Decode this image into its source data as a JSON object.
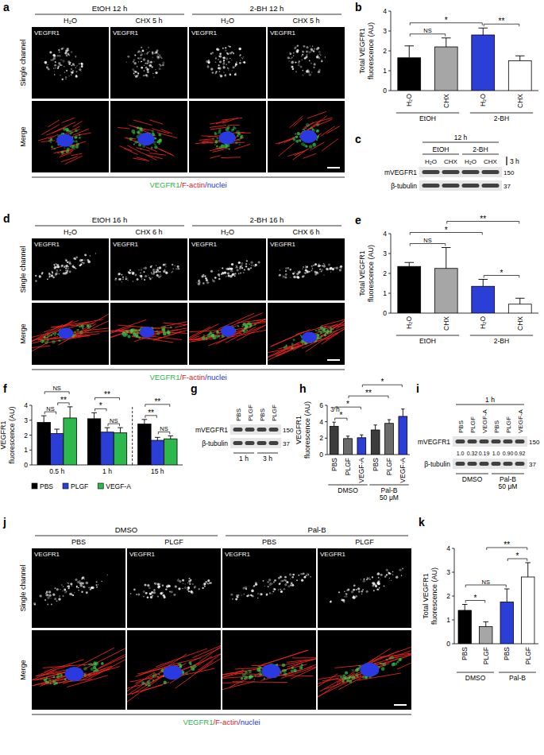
{
  "chart_data": [
    {
      "panel": "b",
      "type": "bar",
      "y_label": [
        "Total VEGFR1",
        "fluorescence (AU)"
      ],
      "categories": [
        "H₂O",
        "CHX",
        "H₂O",
        "CHX"
      ],
      "groups": [
        {
          "label": "EtOH",
          "categories": [
            0,
            1
          ]
        },
        {
          "label": "2-BH",
          "categories": [
            2,
            3
          ]
        }
      ],
      "values": [
        1.65,
        2.2,
        2.8,
        1.5
      ],
      "errors": [
        0.6,
        0.45,
        0.35,
        0.25
      ],
      "colors": [
        "#000000",
        "#a6a6a6",
        "#2b3fd6",
        "#ffffff"
      ],
      "ylim": [
        0,
        4
      ],
      "yticks": [
        0,
        1,
        2,
        3,
        4
      ],
      "annotations": [
        {
          "text": "NS",
          "between": [
            0,
            1
          ]
        },
        {
          "text": "*",
          "between": [
            0,
            2
          ]
        },
        {
          "text": "**",
          "between": [
            2,
            3
          ]
        }
      ]
    },
    {
      "panel": "e",
      "type": "bar",
      "y_label": [
        "Total VEGFR1",
        "fluorescence (AU)"
      ],
      "categories": [
        "H₂O",
        "CHX",
        "H₂O",
        "CHX"
      ],
      "groups": [
        {
          "label": "EtOH",
          "categories": [
            0,
            1
          ]
        },
        {
          "label": "2-BH",
          "categories": [
            2,
            3
          ]
        }
      ],
      "values": [
        2.35,
        2.25,
        1.35,
        0.45
      ],
      "errors": [
        0.2,
        1.05,
        0.35,
        0.3
      ],
      "colors": [
        "#000000",
        "#a6a6a6",
        "#2b3fd6",
        "#ffffff"
      ],
      "ylim": [
        0,
        4
      ],
      "yticks": [
        0,
        1,
        2,
        3,
        4
      ],
      "annotations": [
        {
          "text": "NS",
          "between": [
            0,
            1
          ]
        },
        {
          "text": "*",
          "between": [
            0,
            2
          ]
        },
        {
          "text": "**",
          "between": [
            1,
            3
          ]
        },
        {
          "text": "*",
          "between": [
            2,
            3
          ]
        }
      ]
    },
    {
      "panel": "f",
      "type": "bar",
      "y_label": [
        "VEGFR1",
        "fluorescence (AU)"
      ],
      "categories": [
        "0.5 h",
        "1 h",
        "15 h"
      ],
      "series": [
        {
          "name": "PBS",
          "color": "#000000",
          "values": [
            2.85,
            3.1,
            2.75
          ],
          "errors": [
            0.45,
            0.4,
            0.3
          ]
        },
        {
          "name": "PLGF",
          "color": "#2b3fd6",
          "values": [
            2.1,
            2.2,
            1.65
          ],
          "errors": [
            0.3,
            0.3,
            0.2
          ]
        },
        {
          "name": "VEGF-A",
          "color": "#2db84d",
          "values": [
            3.15,
            2.15,
            1.75
          ],
          "errors": [
            0.75,
            0.35,
            0.2
          ]
        }
      ],
      "ylim": [
        0,
        4
      ],
      "yticks": [
        0,
        1,
        2,
        3,
        4
      ],
      "legend": "bottom",
      "annotations": [
        {
          "text": "NS",
          "category": 0,
          "between": [
            0,
            1
          ]
        },
        {
          "text": "**",
          "category": 0,
          "between": [
            1,
            2
          ]
        },
        {
          "text": "NS",
          "category": 0,
          "between": [
            0,
            2
          ]
        },
        {
          "text": "*",
          "category": 1,
          "between": [
            0,
            1
          ]
        },
        {
          "text": "NS",
          "category": 1,
          "between": [
            1,
            2
          ]
        },
        {
          "text": "**",
          "category": 1,
          "between": [
            0,
            2
          ]
        },
        {
          "text": "**",
          "category": 2,
          "between": [
            0,
            1
          ]
        },
        {
          "text": "NS",
          "category": 2,
          "between": [
            1,
            2
          ]
        },
        {
          "text": "**",
          "category": 2,
          "between": [
            0,
            2
          ]
        }
      ]
    },
    {
      "panel": "h",
      "type": "bar",
      "subtitle": "3 h",
      "y_label": [
        "VEGFR1",
        "fluorescence (AU)"
      ],
      "categories": [
        "PBS",
        "PLGF",
        "VEGF-A",
        "PBS",
        "PLGF",
        "VEGF-A"
      ],
      "groups": [
        {
          "label": "DMSO",
          "categories": [
            0,
            1,
            2
          ]
        },
        {
          "label": [
            "Pal-B",
            "50 μM"
          ],
          "categories": [
            3,
            4,
            5
          ]
        }
      ],
      "values": [
        3.45,
        1.95,
        2.05,
        3.0,
        3.8,
        4.65
      ],
      "errors": [
        0.5,
        0.3,
        0.35,
        0.6,
        0.45,
        0.9
      ],
      "colors": [
        "#3c3c3c",
        "#6b6b6b",
        "#2b3fd6",
        "#3c3c3c",
        "#6b6b6b",
        "#2b3fd6"
      ],
      "ylim": [
        0,
        6
      ],
      "yticks": [
        0,
        2,
        4,
        6
      ],
      "annotations": [
        {
          "text": "*",
          "between": [
            0,
            1
          ]
        },
        {
          "text": "*",
          "between": [
            0,
            2
          ]
        },
        {
          "text": "**",
          "between": [
            1,
            4
          ]
        },
        {
          "text": "*",
          "between": [
            2,
            5
          ]
        }
      ]
    },
    {
      "panel": "k",
      "type": "bar",
      "y_label": [
        "Total VEGFR1",
        "fluorescence (AU)"
      ],
      "categories": [
        "PBS",
        "PLGF",
        "PBS",
        "PLGF"
      ],
      "groups": [
        {
          "label": "DMSO",
          "categories": [
            0,
            1
          ]
        },
        {
          "label": "Pal-B",
          "categories": [
            2,
            3
          ]
        }
      ],
      "values": [
        1.4,
        0.72,
        1.75,
        2.8
      ],
      "errors": [
        0.25,
        0.2,
        0.55,
        0.6
      ],
      "colors": [
        "#000000",
        "#a6a6a6",
        "#2b3fd6",
        "#ffffff"
      ],
      "ylim": [
        0,
        4
      ],
      "yticks": [
        0,
        1,
        2,
        3,
        4
      ],
      "annotations": [
        {
          "text": "*",
          "between": [
            0,
            1
          ]
        },
        {
          "text": "NS",
          "between": [
            0,
            2
          ]
        },
        {
          "text": "**",
          "between": [
            1,
            3
          ]
        },
        {
          "text": "*",
          "between": [
            2,
            3
          ]
        }
      ]
    }
  ],
  "images": {
    "a": {
      "label": "a",
      "groups": [
        {
          "label": "EtOH 12 h",
          "columns": [
            "H₂O",
            "CHX 5 h"
          ]
        },
        {
          "label": "2-BH 12 h",
          "columns": [
            "H₂O",
            "CHX 5 h"
          ]
        }
      ],
      "rows": [
        "Single channel",
        "Merge"
      ],
      "channel_label": "VEGFR1",
      "caption": [
        {
          "text": "VEGFR1",
          "color": "#2db84d"
        },
        {
          "text": "/F-actin",
          "color": "#e0201b"
        },
        {
          "text": "/nuclei",
          "color": "#2030e0"
        }
      ]
    },
    "d": {
      "label": "d",
      "groups": [
        {
          "label": "EtOH 16 h",
          "columns": [
            "H₂O",
            "CHX 6 h"
          ]
        },
        {
          "label": "2-BH 16 h",
          "columns": [
            "H₂O",
            "CHX 6 h"
          ]
        }
      ],
      "rows": [
        "Single channel",
        "Merge"
      ],
      "channel_label": "VEGFR1",
      "caption": [
        {
          "text": "VEGFR1",
          "color": "#2db84d"
        },
        {
          "text": "/F-actin",
          "color": "#e0201b"
        },
        {
          "text": "/nuclei",
          "color": "#2030e0"
        }
      ]
    },
    "j": {
      "label": "j",
      "groups": [
        {
          "label": "DMSO",
          "columns": [
            "PBS",
            "PLGF"
          ]
        },
        {
          "label": "Pal-B",
          "columns": [
            "PBS",
            "PLGF"
          ]
        }
      ],
      "rows": [
        "Single channel",
        "Merge"
      ],
      "channel_label": "VEGFR1",
      "caption": [
        {
          "text": "VEGFR1",
          "color": "#2db84d"
        },
        {
          "text": "/F-actin",
          "color": "#e0201b"
        },
        {
          "text": "/nuclei",
          "color": "#2030e0"
        }
      ]
    }
  },
  "blots": {
    "c": {
      "label": "c",
      "time": "12 h",
      "lanes": [
        "H₂O",
        "CHX",
        "H₂O",
        "CHX"
      ],
      "groups": [
        {
          "label": "EtOH",
          "lanes": [
            0,
            1
          ]
        },
        {
          "label": "2-BH",
          "lanes": [
            2,
            3
          ]
        }
      ],
      "side_label": "3 h",
      "bands": [
        {
          "name": "mVEGFR1",
          "marker": 150
        },
        {
          "name": "β-tubulin",
          "marker": 37
        }
      ]
    },
    "g": {
      "label": "g",
      "lanes": [
        "PBS",
        "PLGF",
        "PBS",
        "PLGF"
      ],
      "groups": [
        {
          "label": "1 h",
          "lanes": [
            0,
            1
          ]
        },
        {
          "label": "3 h",
          "lanes": [
            2,
            3
          ]
        }
      ],
      "bands": [
        {
          "name": "mVEGFR1",
          "marker": 150
        },
        {
          "name": "β-tubulin",
          "marker": 37
        }
      ]
    },
    "i": {
      "label": "i",
      "time": "1 h",
      "lanes": [
        "PBS",
        "PLGF",
        "VEGF-A",
        "PBS",
        "PLGF",
        "VEGF-A"
      ],
      "quantification": [
        "1.0",
        "0.32",
        "0.19",
        "1.0",
        "0.90",
        "0.92"
      ],
      "groups": [
        {
          "label": "DMSO",
          "lanes": [
            0,
            1,
            2
          ]
        },
        {
          "label": [
            "Pal-B",
            "50 μM"
          ],
          "lanes": [
            3,
            4,
            5
          ]
        }
      ],
      "bands": [
        {
          "name": "mVEGFR1",
          "marker": 150
        },
        {
          "name": "β-tubulin",
          "marker": 37
        }
      ]
    }
  }
}
